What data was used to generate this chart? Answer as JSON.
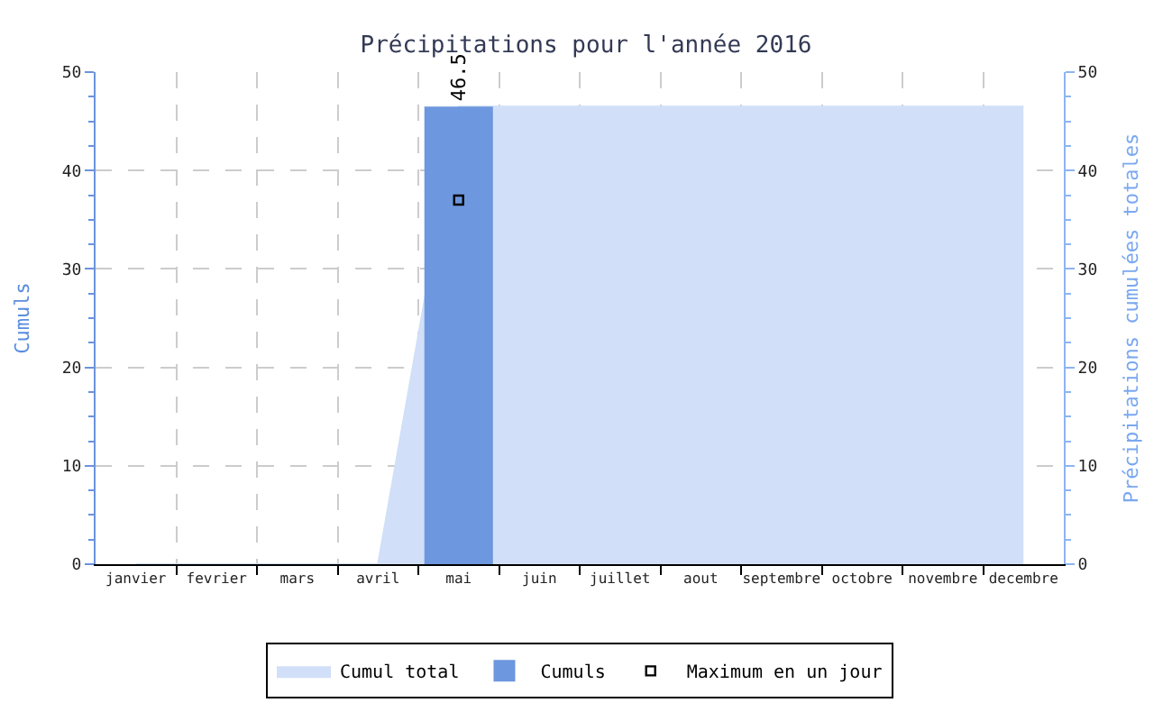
{
  "chart_data": {
    "type": "bar",
    "title": "Précipitations pour l'année 2016",
    "ylabel": "Cumuls",
    "y2label": "Précipitations cumulées totales",
    "categories": [
      "janvier",
      "fevrier",
      "mars",
      "avril",
      "mai",
      "juin",
      "juillet",
      "aout",
      "septembre",
      "octobre",
      "novembre",
      "decembre"
    ],
    "series": [
      {
        "name": "Cumul total",
        "type": "area",
        "axis": "y2",
        "color": "#d1dff8",
        "values": [
          0,
          0,
          0,
          0,
          46.5,
          46.5,
          46.5,
          46.5,
          46.5,
          46.5,
          46.5,
          46.5
        ]
      },
      {
        "name": "Cumuls",
        "color": "#6d97de",
        "values": [
          0,
          0,
          0,
          0,
          46.5,
          0,
          0,
          0,
          0,
          0,
          0,
          0
        ],
        "value_labels": [
          null,
          null,
          null,
          null,
          "46.5",
          null,
          null,
          null,
          null,
          null,
          null,
          null
        ]
      },
      {
        "name": "Maximum en un jour",
        "type": "scatter",
        "marker": "square",
        "color": "#000000",
        "values": [
          null,
          null,
          null,
          null,
          37,
          null,
          null,
          null,
          null,
          null,
          null,
          null
        ]
      }
    ],
    "ylim": [
      0,
      50
    ],
    "yticks": [
      0,
      10,
      20,
      30,
      40,
      50
    ],
    "y2lim": [
      0,
      50
    ],
    "y2ticks": [
      0,
      10,
      20,
      30,
      40,
      50
    ],
    "grid": true,
    "legend": "bottom"
  }
}
